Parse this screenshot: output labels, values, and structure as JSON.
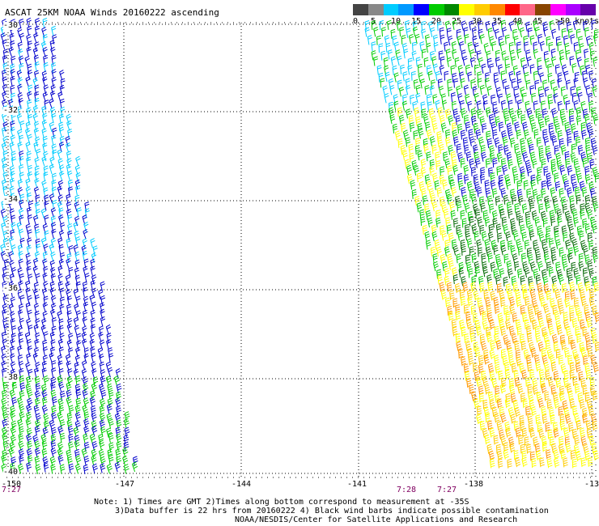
{
  "title": "ASCAT 25KM NOAA Winds 20160222 ascending",
  "legend": {
    "colors": [
      "#444444",
      "#888888",
      "#00ccff",
      "#0099ff",
      "#0000ff",
      "#00cc00",
      "#008800",
      "#ffff00",
      "#ffcc00",
      "#ff8800",
      "#ff0000",
      "#ff6688",
      "#884400",
      "#ff00ff",
      "#aa00ff",
      "#6600aa"
    ],
    "labels": [
      "0",
      "5",
      "10",
      "15",
      "20",
      "25",
      "30",
      "35",
      "40",
      "45",
      ">50 knots"
    ]
  },
  "map": {
    "lat_labels": [
      "-30",
      "-32",
      "-34",
      "-36",
      "-38",
      "-40"
    ],
    "lon_labels": [
      "-150",
      "-147",
      "-144",
      "-141",
      "-138",
      "-13"
    ]
  },
  "times": [
    "7:27",
    "7:28",
    "7:27"
  ],
  "notes": {
    "line1": "Note: 1) Times are GMT 2)Times along bottom correspond to measurement at -35S",
    "line2": "3)Data buffer is 22 hrs from 20160222 4) Black wind barbs indicate possible contamination",
    "line3": "NOAA/NESDIS/Center for Satellite Applications and Research"
  },
  "wind_colors": {
    "speed_5_10": "#00ccff",
    "speed_10_15": "#0000cc",
    "speed_15_20": "#00cc00",
    "speed_20_25": "#006600",
    "speed_25_30": "#ffff00",
    "speed_30_35": "#ffcc00",
    "speed_35_40": "#ff9900"
  }
}
